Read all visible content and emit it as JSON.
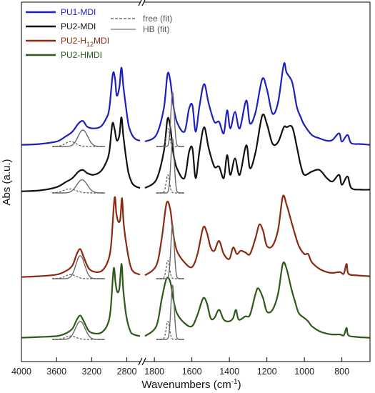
{
  "chart_data": {
    "type": "line",
    "xlabel_main": "Wavenumbers (cm",
    "xlabel_sup": "-1",
    "xlabel_end": ")",
    "ylabel": "Abs (a.u.)",
    "x_broken": true,
    "segments": [
      {
        "xlim": [
          4000,
          2650
        ],
        "ticks": [
          4000,
          3600,
          3200,
          2800
        ]
      },
      {
        "xlim": [
          1850,
          650
        ],
        "ticks": [
          1800,
          1600,
          1400,
          1200,
          1000,
          800
        ]
      }
    ],
    "legend": [
      {
        "text": "PU1-MDI",
        "color": "#1f1fbf"
      },
      {
        "text": "PU2-MDI",
        "color": "#111111"
      },
      {
        "text_main": "PU2-H",
        "text_sub": "12",
        "text_end": "MDI",
        "color": "#8b2a12"
      },
      {
        "text": "PU2-HMDI",
        "color": "#2d5a1b"
      }
    ],
    "fit_legend": [
      {
        "text": "free (fit)",
        "style": "dashed",
        "color": "#555555"
      },
      {
        "text": "HB (fit)",
        "style": "solid",
        "color": "#777777"
      }
    ],
    "series": [
      {
        "name": "PU1-MDI",
        "color": "#1f1fbf",
        "baseline": 0.0,
        "nh_fit": {
          "hb_center": 3300,
          "hb_width": 55,
          "hb_height": 0.2,
          "free_center": 3440,
          "free_width": 60,
          "free_height": 0.06
        },
        "left": [
          [
            4000,
            0.02
          ],
          [
            3800,
            0.03
          ],
          [
            3600,
            0.06
          ],
          [
            3500,
            0.12
          ],
          [
            3420,
            0.18
          ],
          [
            3350,
            0.28
          ],
          [
            3300,
            0.31
          ],
          [
            3250,
            0.24
          ],
          [
            3180,
            0.22
          ],
          [
            3100,
            0.24
          ],
          [
            3040,
            0.33
          ],
          [
            3000,
            0.46
          ],
          [
            2960,
            0.88
          ],
          [
            2935,
            0.83
          ],
          [
            2915,
            0.62
          ],
          [
            2885,
            0.72
          ],
          [
            2862,
            0.96
          ],
          [
            2840,
            0.74
          ],
          [
            2810,
            0.48
          ],
          [
            2780,
            0.26
          ],
          [
            2740,
            0.14
          ],
          [
            2700,
            0.09
          ],
          [
            2650,
            0.07
          ]
        ],
        "right": [
          [
            1850,
            0.06
          ],
          [
            1790,
            0.14
          ],
          [
            1750,
            0.46
          ],
          [
            1730,
            0.88
          ],
          [
            1715,
            0.8
          ],
          [
            1700,
            0.52
          ],
          [
            1680,
            0.3
          ],
          [
            1640,
            0.18
          ],
          [
            1615,
            0.46
          ],
          [
            1597,
            0.5
          ],
          [
            1580,
            0.18
          ],
          [
            1560,
            0.48
          ],
          [
            1535,
            0.76
          ],
          [
            1510,
            0.52
          ],
          [
            1480,
            0.3
          ],
          [
            1455,
            0.3
          ],
          [
            1430,
            0.16
          ],
          [
            1412,
            0.44
          ],
          [
            1395,
            0.22
          ],
          [
            1370,
            0.42
          ],
          [
            1345,
            0.22
          ],
          [
            1310,
            0.56
          ],
          [
            1290,
            0.28
          ],
          [
            1260,
            0.42
          ],
          [
            1225,
            0.82
          ],
          [
            1200,
            0.7
          ],
          [
            1170,
            0.4
          ],
          [
            1140,
            0.54
          ],
          [
            1110,
            1.0
          ],
          [
            1095,
            0.9
          ],
          [
            1065,
            0.78
          ],
          [
            1040,
            0.48
          ],
          [
            1020,
            0.36
          ],
          [
            1000,
            0.26
          ],
          [
            960,
            0.14
          ],
          [
            920,
            0.1
          ],
          [
            880,
            0.07
          ],
          [
            850,
            0.08
          ],
          [
            815,
            0.16
          ],
          [
            800,
            0.06
          ],
          [
            770,
            0.14
          ],
          [
            750,
            0.04
          ],
          [
            700,
            0.03
          ],
          [
            650,
            0.02
          ]
        ]
      },
      {
        "name": "PU2-MDI",
        "color": "#111111",
        "baseline": 0.0,
        "nh_fit": {
          "hb_center": 3310,
          "hb_width": 60,
          "hb_height": 0.16,
          "free_center": 3450,
          "free_width": 70,
          "free_height": 0.05
        },
        "left": [
          [
            4000,
            0.02
          ],
          [
            3800,
            0.03
          ],
          [
            3600,
            0.07
          ],
          [
            3500,
            0.13
          ],
          [
            3420,
            0.18
          ],
          [
            3350,
            0.26
          ],
          [
            3300,
            0.28
          ],
          [
            3250,
            0.24
          ],
          [
            3180,
            0.22
          ],
          [
            3100,
            0.26
          ],
          [
            3040,
            0.36
          ],
          [
            3000,
            0.5
          ],
          [
            2965,
            0.84
          ],
          [
            2940,
            0.78
          ],
          [
            2915,
            0.64
          ],
          [
            2885,
            0.7
          ],
          [
            2862,
            0.92
          ],
          [
            2840,
            0.7
          ],
          [
            2810,
            0.44
          ],
          [
            2780,
            0.24
          ],
          [
            2740,
            0.12
          ],
          [
            2700,
            0.08
          ],
          [
            2650,
            0.06
          ]
        ],
        "right": [
          [
            1850,
            0.06
          ],
          [
            1790,
            0.16
          ],
          [
            1750,
            0.5
          ],
          [
            1730,
            0.9
          ],
          [
            1715,
            0.8
          ],
          [
            1700,
            0.5
          ],
          [
            1680,
            0.3
          ],
          [
            1640,
            0.18
          ],
          [
            1615,
            0.5
          ],
          [
            1597,
            0.54
          ],
          [
            1580,
            0.18
          ],
          [
            1560,
            0.5
          ],
          [
            1535,
            0.8
          ],
          [
            1510,
            0.54
          ],
          [
            1480,
            0.32
          ],
          [
            1455,
            0.32
          ],
          [
            1430,
            0.18
          ],
          [
            1412,
            0.46
          ],
          [
            1395,
            0.22
          ],
          [
            1370,
            0.42
          ],
          [
            1345,
            0.22
          ],
          [
            1310,
            0.58
          ],
          [
            1290,
            0.3
          ],
          [
            1260,
            0.5
          ],
          [
            1225,
            0.94
          ],
          [
            1200,
            0.84
          ],
          [
            1170,
            0.6
          ],
          [
            1140,
            0.62
          ],
          [
            1110,
            0.8
          ],
          [
            1095,
            0.8
          ],
          [
            1065,
            0.8
          ],
          [
            1040,
            0.56
          ],
          [
            1020,
            0.34
          ],
          [
            1000,
            0.22
          ],
          [
            960,
            0.26
          ],
          [
            920,
            0.28
          ],
          [
            880,
            0.18
          ],
          [
            850,
            0.14
          ],
          [
            815,
            0.22
          ],
          [
            800,
            0.1
          ],
          [
            770,
            0.2
          ],
          [
            750,
            0.06
          ],
          [
            700,
            0.04
          ],
          [
            650,
            0.04
          ]
        ]
      },
      {
        "name": "PU2-H12MDI",
        "color": "#8b2a12",
        "baseline": 0.0,
        "nh_fit": {
          "hb_center": 3330,
          "hb_width": 50,
          "hb_height": 0.28,
          "free_center": 3440,
          "free_width": 60,
          "free_height": 0.05
        },
        "left": [
          [
            4000,
            0.02
          ],
          [
            3800,
            0.03
          ],
          [
            3600,
            0.05
          ],
          [
            3500,
            0.09
          ],
          [
            3420,
            0.16
          ],
          [
            3370,
            0.3
          ],
          [
            3330,
            0.36
          ],
          [
            3290,
            0.26
          ],
          [
            3230,
            0.12
          ],
          [
            3150,
            0.08
          ],
          [
            3080,
            0.1
          ],
          [
            3020,
            0.2
          ],
          [
            2980,
            0.4
          ],
          [
            2940,
            0.98
          ],
          [
            2920,
            0.8
          ],
          [
            2900,
            0.7
          ],
          [
            2875,
            0.72
          ],
          [
            2855,
            0.98
          ],
          [
            2835,
            0.66
          ],
          [
            2800,
            0.38
          ],
          [
            2760,
            0.16
          ],
          [
            2720,
            0.08
          ],
          [
            2650,
            0.05
          ]
        ],
        "right": [
          [
            1850,
            0.04
          ],
          [
            1790,
            0.16
          ],
          [
            1760,
            0.5
          ],
          [
            1735,
            0.92
          ],
          [
            1715,
            0.84
          ],
          [
            1700,
            0.56
          ],
          [
            1680,
            0.34
          ],
          [
            1640,
            0.2
          ],
          [
            1600,
            0.14
          ],
          [
            1570,
            0.3
          ],
          [
            1540,
            0.62
          ],
          [
            1520,
            0.56
          ],
          [
            1500,
            0.38
          ],
          [
            1480,
            0.34
          ],
          [
            1455,
            0.46
          ],
          [
            1430,
            0.3
          ],
          [
            1400,
            0.24
          ],
          [
            1380,
            0.38
          ],
          [
            1360,
            0.3
          ],
          [
            1340,
            0.34
          ],
          [
            1315,
            0.32
          ],
          [
            1290,
            0.3
          ],
          [
            1260,
            0.5
          ],
          [
            1240,
            0.66
          ],
          [
            1220,
            0.58
          ],
          [
            1200,
            0.4
          ],
          [
            1170,
            0.4
          ],
          [
            1140,
            0.6
          ],
          [
            1115,
            1.0
          ],
          [
            1095,
            0.9
          ],
          [
            1070,
            0.7
          ],
          [
            1050,
            0.54
          ],
          [
            1030,
            0.4
          ],
          [
            1000,
            0.3
          ],
          [
            980,
            0.3
          ],
          [
            960,
            0.2
          ],
          [
            920,
            0.12
          ],
          [
            880,
            0.08
          ],
          [
            850,
            0.07
          ],
          [
            810,
            0.08
          ],
          [
            790,
            0.06
          ],
          [
            775,
            0.18
          ],
          [
            765,
            0.06
          ],
          [
            720,
            0.04
          ],
          [
            650,
            0.03
          ]
        ]
      },
      {
        "name": "PU2-HMDI",
        "color": "#2d5a1b",
        "baseline": 0.0,
        "nh_fit": {
          "hb_center": 3330,
          "hb_width": 55,
          "hb_height": 0.22,
          "free_center": 3440,
          "free_width": 60,
          "free_height": 0.04
        },
        "left": [
          [
            4000,
            0.02
          ],
          [
            3800,
            0.03
          ],
          [
            3600,
            0.04
          ],
          [
            3500,
            0.07
          ],
          [
            3420,
            0.13
          ],
          [
            3370,
            0.24
          ],
          [
            3330,
            0.29
          ],
          [
            3290,
            0.22
          ],
          [
            3230,
            0.1
          ],
          [
            3150,
            0.07
          ],
          [
            3080,
            0.09
          ],
          [
            3020,
            0.18
          ],
          [
            2985,
            0.36
          ],
          [
            2950,
            0.86
          ],
          [
            2930,
            0.7
          ],
          [
            2910,
            0.58
          ],
          [
            2885,
            0.62
          ],
          [
            2860,
            0.92
          ],
          [
            2840,
            0.6
          ],
          [
            2805,
            0.28
          ],
          [
            2760,
            0.1
          ],
          [
            2720,
            0.06
          ],
          [
            2650,
            0.04
          ]
        ],
        "right": [
          [
            1850,
            0.04
          ],
          [
            1790,
            0.16
          ],
          [
            1760,
            0.5
          ],
          [
            1735,
            0.74
          ],
          [
            1715,
            0.7
          ],
          [
            1700,
            0.5
          ],
          [
            1680,
            0.32
          ],
          [
            1640,
            0.2
          ],
          [
            1600,
            0.16
          ],
          [
            1570,
            0.3
          ],
          [
            1540,
            0.5
          ],
          [
            1520,
            0.44
          ],
          [
            1500,
            0.26
          ],
          [
            1480,
            0.26
          ],
          [
            1455,
            0.36
          ],
          [
            1430,
            0.24
          ],
          [
            1400,
            0.22
          ],
          [
            1380,
            0.26
          ],
          [
            1365,
            0.36
          ],
          [
            1350,
            0.24
          ],
          [
            1315,
            0.28
          ],
          [
            1290,
            0.3
          ],
          [
            1260,
            0.56
          ],
          [
            1245,
            0.62
          ],
          [
            1220,
            0.5
          ],
          [
            1200,
            0.34
          ],
          [
            1170,
            0.36
          ],
          [
            1140,
            0.56
          ],
          [
            1115,
            0.92
          ],
          [
            1095,
            0.86
          ],
          [
            1070,
            0.62
          ],
          [
            1050,
            0.46
          ],
          [
            1030,
            0.32
          ],
          [
            1000,
            0.26
          ],
          [
            980,
            0.22
          ],
          [
            960,
            0.16
          ],
          [
            920,
            0.1
          ],
          [
            880,
            0.07
          ],
          [
            850,
            0.06
          ],
          [
            810,
            0.06
          ],
          [
            790,
            0.05
          ],
          [
            775,
            0.14
          ],
          [
            765,
            0.05
          ],
          [
            720,
            0.03
          ],
          [
            650,
            0.02
          ]
        ]
      }
    ]
  }
}
